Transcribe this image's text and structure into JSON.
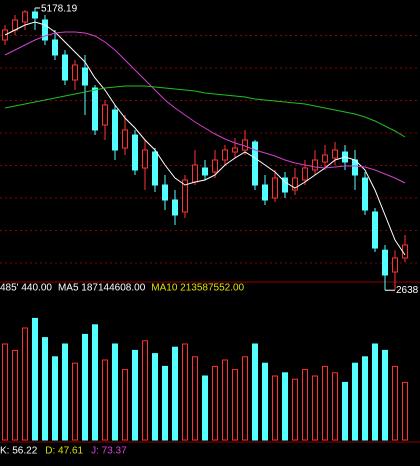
{
  "chart_data": [
    {
      "type": "candlestick",
      "high_label": "5178.19",
      "low_label": "2638",
      "ylim": [
        2550,
        5250
      ],
      "up_color": "#ff3232",
      "down_color": "#54ffff",
      "grid_color": "#8b0000",
      "open": [
        4890,
        4980,
        5052,
        5142,
        5070,
        4890,
        4755,
        4530,
        4638,
        4458,
        4125,
        4260,
        3918,
        4035,
        3738,
        3882,
        3585,
        3450,
        3342,
        3612,
        3738,
        3702,
        3810,
        3882,
        3900,
        3972,
        3585,
        3468,
        3648,
        3540,
        3630,
        3720,
        3792,
        3828,
        3882,
        3810,
        3648,
        3342,
        2998,
        2802,
        2928
      ],
      "high": [
        5025,
        5115,
        5160,
        5178.19,
        5115,
        4980,
        4800,
        4710,
        4755,
        4485,
        4350,
        4305,
        4215,
        4080,
        3990,
        3918,
        3675,
        3540,
        3675,
        3900,
        3810,
        3900,
        3945,
        4008,
        4080,
        3990,
        3675,
        3720,
        3702,
        3738,
        3810,
        3900,
        3945,
        3972,
        3945,
        3900,
        3702,
        3378,
        3045,
        2998,
        3135
      ],
      "low": [
        4845,
        4935,
        4980,
        4980,
        4845,
        4710,
        4485,
        4440,
        4215,
        4035,
        3990,
        3810,
        3855,
        3675,
        3540,
        3522,
        3360,
        3225,
        3288,
        3585,
        3630,
        3648,
        3765,
        3828,
        3855,
        3540,
        3405,
        3432,
        3468,
        3495,
        3585,
        3675,
        3720,
        3765,
        3720,
        3540,
        3315,
        2982,
        2638,
        2640,
        2892
      ],
      "close": [
        4980,
        5070,
        5142,
        5088,
        4890,
        4755,
        4530,
        4665,
        4485,
        4080,
        4305,
        3900,
        4080,
        3720,
        3900,
        3585,
        3450,
        3315,
        3630,
        3765,
        3675,
        3810,
        3900,
        3918,
        3990,
        3585,
        3450,
        3648,
        3522,
        3648,
        3738,
        3810,
        3855,
        3900,
        3792,
        3675,
        3360,
        3018,
        2775,
        2928,
        3045
      ],
      "lines": [
        {
          "color": "#ffffff",
          "values": [
            4935,
            4980,
            5025,
            5052,
            5025,
            4962,
            4872,
            4782,
            4692,
            4548,
            4440,
            4305,
            4188,
            4098,
            3990,
            3900,
            3765,
            3648,
            3585,
            3612,
            3630,
            3675,
            3765,
            3828,
            3882,
            3828,
            3765,
            3702,
            3612,
            3558,
            3612,
            3675,
            3738,
            3810,
            3837,
            3810,
            3720,
            3540,
            3315,
            3090,
            2955
          ]
        },
        {
          "color": "#d040d0",
          "values": [
            4755,
            4800,
            4845,
            4890,
            4926,
            4953,
            4962,
            4962,
            4953,
            4926,
            4872,
            4800,
            4710,
            4620,
            4530,
            4440,
            4350,
            4278,
            4215,
            4152,
            4098,
            4044,
            3999,
            3963,
            3936,
            3900,
            3873,
            3846,
            3810,
            3783,
            3765,
            3747,
            3738,
            3747,
            3756,
            3756,
            3747,
            3720,
            3684,
            3648,
            3603
          ]
        },
        {
          "color": "#20c020",
          "values": [
            4278,
            4296,
            4314,
            4332,
            4350,
            4368,
            4386,
            4404,
            4422,
            4440,
            4458,
            4467,
            4476,
            4476,
            4476,
            4467,
            4458,
            4449,
            4440,
            4431,
            4413,
            4404,
            4395,
            4386,
            4377,
            4359,
            4350,
            4341,
            4332,
            4323,
            4314,
            4296,
            4278,
            4260,
            4242,
            4224,
            4197,
            4161,
            4116,
            4071,
            4017
          ]
        }
      ]
    },
    {
      "type": "volume",
      "legend": [
        {
          "label": "485' 440.00",
          "color": "#ffffff"
        },
        {
          "label": "MA5 187144608.00",
          "color": "#ffffff"
        },
        {
          "label": "MA10 213587552.00",
          "color": "#e0e000"
        }
      ],
      "ylim": [
        0,
        450000000
      ],
      "values": [
        300000000,
        280000000,
        350000000,
        380000000,
        320000000,
        260000000,
        300000000,
        240000000,
        330000000,
        360000000,
        250000000,
        300000000,
        220000000,
        280000000,
        310000000,
        270000000,
        230000000,
        290000000,
        300000000,
        260000000,
        200000000,
        230000000,
        250000000,
        220000000,
        260000000,
        300000000,
        240000000,
        200000000,
        210000000,
        190000000,
        220000000,
        200000000,
        230000000,
        210000000,
        180000000,
        240000000,
        260000000,
        300000000,
        280000000,
        230000000,
        180000000
      ]
    },
    {
      "type": "kdj",
      "legend": [
        {
          "label": "K: 56.22",
          "color": "#ffffff"
        },
        {
          "label": "D: 47.61",
          "color": "#e0e000"
        },
        {
          "label": "J: 73.37",
          "color": "#e040e0"
        }
      ]
    }
  ]
}
